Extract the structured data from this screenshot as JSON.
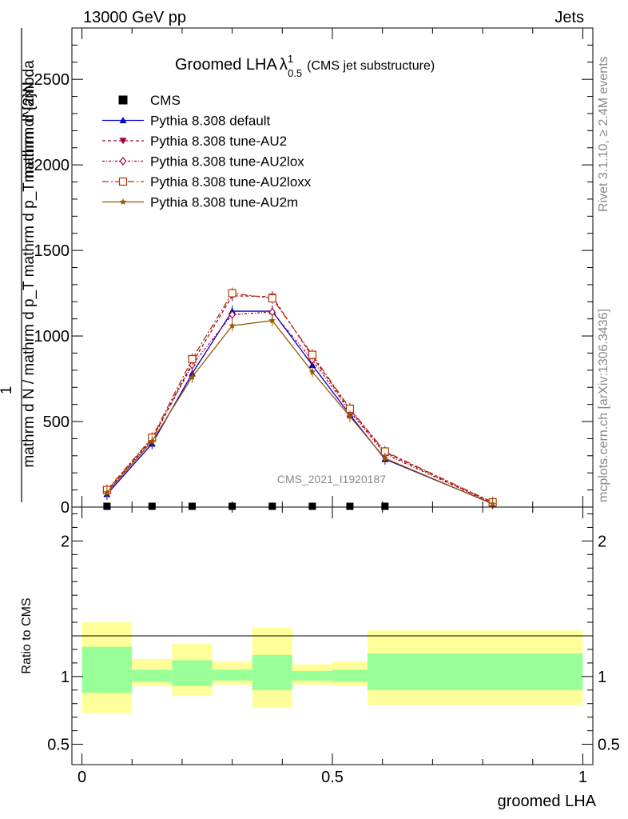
{
  "header": {
    "left": "13000 GeV pp",
    "right": "Jets"
  },
  "side": {
    "rivet": "Rivet 3.1.10, ≥ 2.4M events",
    "mcplots": "mcplots.cern.ch [arXiv:1306.3436]"
  },
  "watermark": "CMS_2021_I1920187",
  "chart_data": [
    {
      "type": "line",
      "title_main": "Groomed LHA",
      "title_lambda": "λ",
      "title_sup": "1",
      "title_sub": "0.5",
      "title_note": "(CMS jet substructure)",
      "ylabel_numer": "1",
      "ylabel_numer2": "mathrm d^{2}N",
      "ylabel_denom": "mathrm d N / mathrm d p_T mathrm d p_T mathrm d lambda",
      "ylim": [
        0,
        2800
      ],
      "yticks": [
        0,
        500,
        1000,
        1500,
        2000,
        2500
      ],
      "ytick_labels": [
        "0",
        "500",
        "1000",
        "1500",
        "2000",
        "2500"
      ],
      "xlim": [
        -0.02,
        1.02
      ],
      "legend_position": "top-left",
      "x": [
        0.05,
        0.14,
        0.22,
        0.3,
        0.38,
        0.46,
        0.535,
        0.605,
        0.82
      ],
      "data": {
        "name": "CMS",
        "color": "#000000",
        "x": [
          0.05,
          0.14,
          0.22,
          0.3,
          0.38,
          0.46,
          0.535,
          0.605
        ],
        "values": [
          2,
          2,
          2,
          3,
          3,
          2,
          2,
          2
        ]
      },
      "series": [
        {
          "name": "Pythia 8.308 default",
          "color": "#0000cc",
          "dash": "",
          "marker": "triangle-up",
          "values": [
            75,
            370,
            780,
            1145,
            1145,
            830,
            540,
            280,
            20
          ]
        },
        {
          "name": "Pythia 8.308 tune-AU2",
          "color": "#990033",
          "dash": "4,3",
          "marker": "triangle-down",
          "values": [
            95,
            400,
            840,
            1235,
            1230,
            880,
            570,
            320,
            25
          ]
        },
        {
          "name": "Pythia 8.308 tune-AU2lox",
          "color": "#aa0033",
          "dash": "3,2,1,2",
          "marker": "diamond",
          "values": [
            90,
            395,
            830,
            1125,
            1140,
            860,
            560,
            310,
            22
          ]
        },
        {
          "name": "Pythia 8.308 tune-AU2loxx",
          "color": "#bb3300",
          "dash": "8,3,2,3",
          "marker": "square-open",
          "values": [
            100,
            405,
            865,
            1250,
            1220,
            890,
            575,
            325,
            28
          ]
        },
        {
          "name": "Pythia 8.308 tune-AU2m",
          "color": "#995500",
          "dash": "",
          "marker": "star",
          "values": [
            85,
            385,
            760,
            1060,
            1090,
            790,
            530,
            285,
            18
          ]
        }
      ]
    },
    {
      "type": "area",
      "ylabel": "Ratio to CMS",
      "xlabel": "groomed LHA",
      "ylim": [
        0.35,
        2.25
      ],
      "yticks": [
        0.5,
        1,
        2
      ],
      "ytick_labels": [
        "0.5",
        "1",
        "2"
      ],
      "xticks": [
        0,
        0.5,
        1
      ],
      "xtick_labels": [
        "0",
        "0.5",
        "1"
      ],
      "bins": [
        {
          "x0": 0.0,
          "x1": 0.1,
          "inner": [
            0.88,
            1.22
          ],
          "outer": [
            0.73,
            1.4
          ]
        },
        {
          "x0": 0.1,
          "x1": 0.18,
          "inner": [
            0.96,
            1.05
          ],
          "outer": [
            0.93,
            1.13
          ]
        },
        {
          "x0": 0.18,
          "x1": 0.26,
          "inner": [
            0.93,
            1.12
          ],
          "outer": [
            0.86,
            1.24
          ]
        },
        {
          "x0": 0.26,
          "x1": 0.34,
          "inner": [
            0.97,
            1.05
          ],
          "outer": [
            0.94,
            1.11
          ]
        },
        {
          "x0": 0.34,
          "x1": 0.42,
          "inner": [
            0.9,
            1.16
          ],
          "outer": [
            0.77,
            1.36
          ]
        },
        {
          "x0": 0.42,
          "x1": 0.5,
          "inner": [
            0.97,
            1.04
          ],
          "outer": [
            0.94,
            1.09
          ]
        },
        {
          "x0": 0.5,
          "x1": 0.57,
          "inner": [
            0.96,
            1.05
          ],
          "outer": [
            0.93,
            1.11
          ]
        },
        {
          "x0": 0.57,
          "x1": 1.0,
          "inner": [
            0.9,
            1.17
          ],
          "outer": [
            0.79,
            1.34
          ]
        }
      ],
      "inner_color": "#99ff99",
      "outer_color": "#ffff99"
    }
  ]
}
